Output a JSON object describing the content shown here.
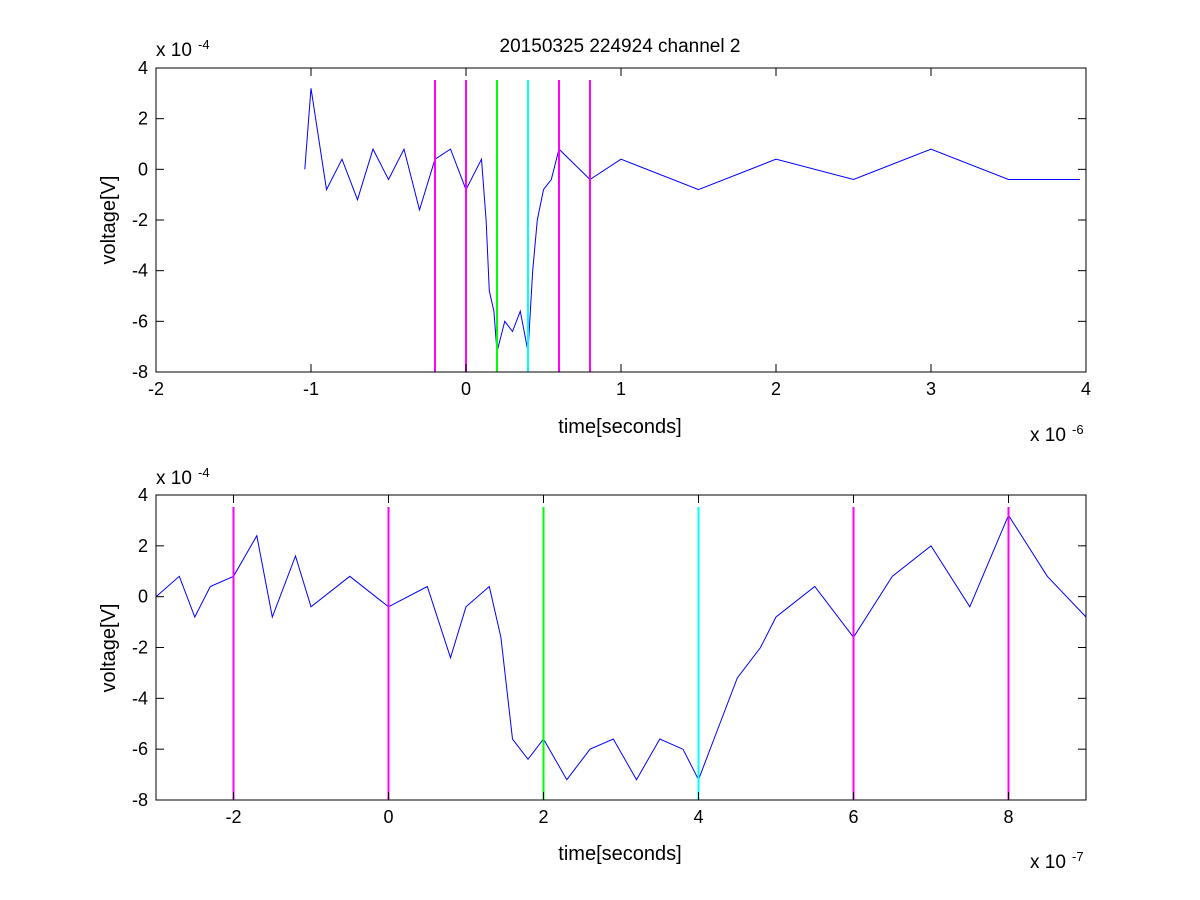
{
  "title": "20150325 224924 channel 2",
  "colors": {
    "trace": "#0000ff",
    "marker_magenta": "#ff00ff",
    "marker_green": "#00ff00",
    "marker_cyan": "#00ffff",
    "axes": "#000000"
  },
  "chart_data": [
    {
      "type": "line",
      "title": "20150325 224924 channel 2",
      "xlabel": "time[seconds]",
      "ylabel": "voltage[V]",
      "x_exponent_label": "x 10",
      "x_exponent_power": "-6",
      "y_exponent_label": "x 10",
      "y_exponent_power": "-4",
      "xlim": [
        -2,
        4
      ],
      "ylim": [
        -8,
        4
      ],
      "xticks": [
        "-2",
        "-1",
        "0",
        "1",
        "2",
        "3",
        "4"
      ],
      "yticks": [
        "-8",
        "-6",
        "-4",
        "-2",
        "0",
        "2",
        "4"
      ],
      "grid": false,
      "series": [
        {
          "x": [
            -1.04,
            -1.0,
            -0.9,
            -0.8,
            -0.7,
            -0.6,
            -0.5,
            -0.4,
            -0.3,
            -0.2,
            -0.1,
            0.0,
            0.1,
            0.13,
            0.15,
            0.18,
            0.2,
            0.25,
            0.3,
            0.35,
            0.4,
            0.43,
            0.46,
            0.5,
            0.55,
            0.6,
            0.8,
            1.0,
            1.5,
            2.0,
            2.5,
            3.0,
            3.5,
            3.96
          ],
          "y": [
            0.0,
            3.2,
            -0.8,
            0.4,
            -1.2,
            0.8,
            -0.4,
            0.8,
            -1.6,
            0.4,
            0.8,
            -0.8,
            0.4,
            -2.0,
            -4.8,
            -5.6,
            -7.2,
            -6.0,
            -6.4,
            -5.6,
            -7.2,
            -4.0,
            -2.0,
            -0.8,
            -0.4,
            0.8,
            -0.4,
            0.4,
            -0.8,
            0.4,
            -0.4,
            0.8,
            -0.4,
            -0.4
          ]
        }
      ],
      "markers": [
        {
          "x": -0.2,
          "color": "magenta"
        },
        {
          "x": 0.0,
          "color": "magenta"
        },
        {
          "x": 0.2,
          "color": "green"
        },
        {
          "x": 0.4,
          "color": "cyan"
        },
        {
          "x": 0.6,
          "color": "magenta"
        },
        {
          "x": 0.8,
          "color": "magenta"
        }
      ]
    },
    {
      "type": "line",
      "title": "",
      "xlabel": "time[seconds]",
      "ylabel": "voltage[V]",
      "x_exponent_label": "x 10",
      "x_exponent_power": "-7",
      "y_exponent_label": "x 10",
      "y_exponent_power": "-4",
      "xlim": [
        -3,
        9
      ],
      "ylim": [
        -8,
        4
      ],
      "xticks": [
        "-2",
        "0",
        "2",
        "4",
        "6",
        "8"
      ],
      "yticks": [
        "-8",
        "-6",
        "-4",
        "-2",
        "0",
        "2",
        "4"
      ],
      "grid": false,
      "series": [
        {
          "x": [
            -3.0,
            -2.7,
            -2.5,
            -2.3,
            -2.0,
            -1.7,
            -1.5,
            -1.2,
            -1.0,
            -0.5,
            0.0,
            0.5,
            0.8,
            1.0,
            1.3,
            1.45,
            1.6,
            1.8,
            2.0,
            2.3,
            2.6,
            2.9,
            3.2,
            3.5,
            3.8,
            4.0,
            4.2,
            4.5,
            4.8,
            5.0,
            5.5,
            6.0,
            6.5,
            7.0,
            7.5,
            8.0,
            8.5,
            9.0
          ],
          "y": [
            0.0,
            0.8,
            -0.8,
            0.4,
            0.8,
            2.4,
            -0.8,
            1.6,
            -0.4,
            0.8,
            -0.4,
            0.4,
            -2.4,
            -0.4,
            0.4,
            -1.6,
            -5.6,
            -6.4,
            -5.6,
            -7.2,
            -6.0,
            -5.6,
            -7.2,
            -5.6,
            -6.0,
            -7.2,
            -5.6,
            -3.2,
            -2.0,
            -0.8,
            0.4,
            -1.6,
            0.8,
            2.0,
            -0.4,
            3.2,
            0.8,
            -0.8
          ]
        }
      ],
      "markers": [
        {
          "x": -2.0,
          "color": "magenta"
        },
        {
          "x": 0.0,
          "color": "magenta"
        },
        {
          "x": 2.0,
          "color": "green"
        },
        {
          "x": 4.0,
          "color": "cyan"
        },
        {
          "x": 6.0,
          "color": "magenta"
        },
        {
          "x": 8.0,
          "color": "magenta"
        }
      ]
    }
  ]
}
